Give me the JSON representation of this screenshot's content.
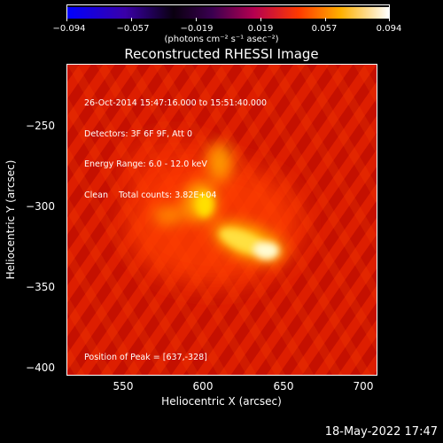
{
  "colorbar": {
    "ticks": [
      "−0.094",
      "−0.057",
      "−0.019",
      "0.019",
      "0.057",
      "0.094"
    ],
    "units": "(photons cm⁻² s⁻¹ asec⁻²)"
  },
  "title": "Reconstructed RHESSI Image",
  "info": {
    "line1": "26-Oct-2014 15:47:16.000 to 15:51:40.000",
    "line2": "Detectors: 3F 6F 9F, Att 0",
    "line3": "Energy Range: 6.0 - 12.0 keV",
    "line4": "Clean    Total counts: 3.82E+04"
  },
  "peak_label": "Position of Peak = [637,-328]",
  "axes": {
    "xlabel": "Heliocentric X (arcsec)",
    "ylabel": "Heliocentric Y (arcsec)",
    "xticks": [
      "550",
      "600",
      "650",
      "700"
    ],
    "yticks": [
      "−250",
      "−300",
      "−350",
      "−400"
    ]
  },
  "date_stamp": "18-May-2022 17:47",
  "colors": {
    "colorbar_low": "#0000ff",
    "colorbar_mid": "#000000",
    "colorbar_high": "#ffffff"
  }
}
